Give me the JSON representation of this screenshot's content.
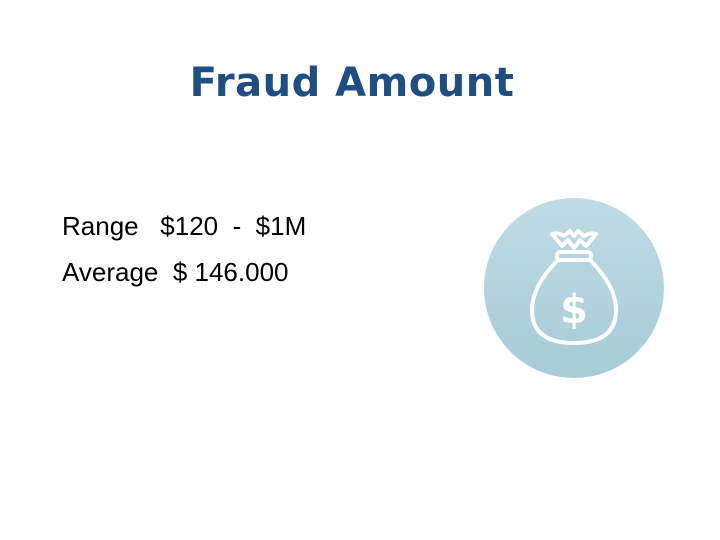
{
  "slide": {
    "title": "Fraud Amount",
    "lines": [
      "Range   $120  -  $1M",
      "Average  $ 146.000"
    ],
    "icon": {
      "name": "money-bag-icon",
      "color": "#a9ccd8",
      "symbol": "$"
    }
  }
}
